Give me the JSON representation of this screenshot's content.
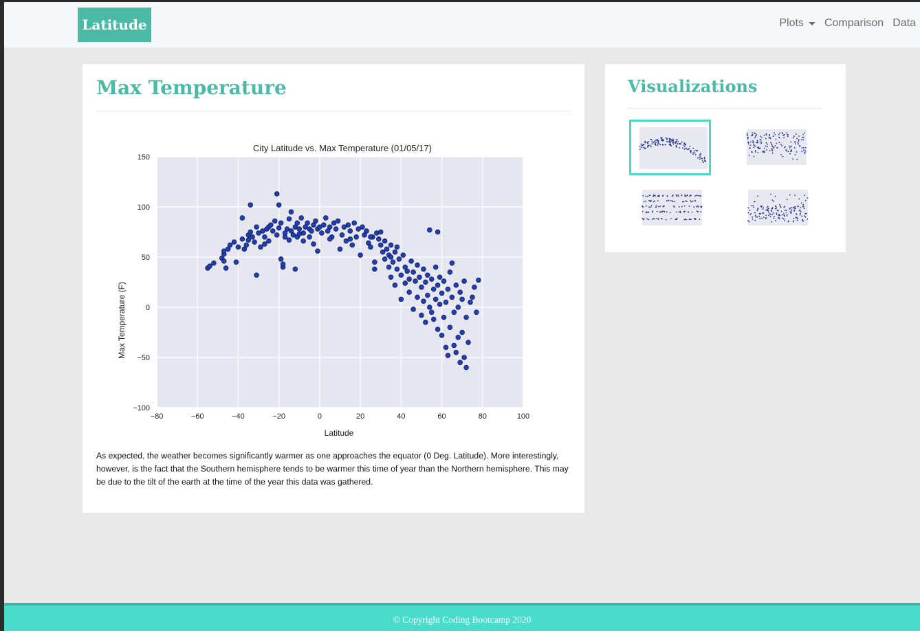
{
  "navbar": {
    "brand": "Latitude",
    "links": [
      {
        "label": "Plots",
        "dropdown": true
      },
      {
        "label": "Comparison"
      },
      {
        "label": "Data"
      }
    ]
  },
  "main": {
    "title": "Max Temperature",
    "description": "As expected, the weather becomes significantly warmer as one approaches the equator (0 Deg. Latitude). More interestingly, however, is the fact that the Southern hemisphere tends to be warmer this time of year than the Northern hemisphere. This may be due to the tilt of the earth at the time of the year this data was gathered."
  },
  "sidebar": {
    "title": "Visualizations",
    "thumbnails": [
      {
        "name": "max-temperature",
        "selected": true
      },
      {
        "name": "humidity",
        "selected": false
      },
      {
        "name": "cloudiness",
        "selected": false
      },
      {
        "name": "wind-speed",
        "selected": false
      }
    ]
  },
  "footer": {
    "text": "© Copyright Coding Bootcamp 2020"
  },
  "colors": {
    "accent": "#4ab9a6",
    "footer": "#4adccb",
    "marker": "#1f3fb5",
    "plot_bg": "#e5e6f0"
  },
  "chart_data": {
    "type": "scatter",
    "title": "City Latitude vs. Max Temperature (01/05/17)",
    "xlabel": "Latitude",
    "ylabel": "Max Temperature (F)",
    "xlim": [
      -80,
      100
    ],
    "ylim": [
      -100,
      150
    ],
    "xticks": [
      -80,
      -60,
      -40,
      -20,
      0,
      20,
      40,
      60,
      80,
      100
    ],
    "yticks": [
      -100,
      -50,
      0,
      50,
      100,
      150
    ],
    "grid": true,
    "points": [
      [
        -55,
        39
      ],
      [
        -54,
        41
      ],
      [
        -52,
        44
      ],
      [
        -48,
        49
      ],
      [
        -47,
        53
      ],
      [
        -47,
        56
      ],
      [
        -47,
        46
      ],
      [
        -46,
        39
      ],
      [
        -45,
        58
      ],
      [
        -44,
        62
      ],
      [
        -42,
        65
      ],
      [
        -41,
        45
      ],
      [
        -40,
        60
      ],
      [
        -38,
        68
      ],
      [
        -38,
        89
      ],
      [
        -37,
        58
      ],
      [
        -36,
        62
      ],
      [
        -35,
        72
      ],
      [
        -35,
        67
      ],
      [
        -34,
        102
      ],
      [
        -34,
        75
      ],
      [
        -33,
        70
      ],
      [
        -32,
        65
      ],
      [
        -31,
        80
      ],
      [
        -31,
        32
      ],
      [
        -30,
        74
      ],
      [
        -29,
        60
      ],
      [
        -28,
        76
      ],
      [
        -27,
        70
      ],
      [
        -27,
        63
      ],
      [
        -26,
        78
      ],
      [
        -25,
        66
      ],
      [
        -25,
        80
      ],
      [
        -24,
        82
      ],
      [
        -23,
        76
      ],
      [
        -22,
        86
      ],
      [
        -21,
        113
      ],
      [
        -21,
        72
      ],
      [
        -20,
        102
      ],
      [
        -20,
        79
      ],
      [
        -19,
        84
      ],
      [
        -19,
        48
      ],
      [
        -18,
        40
      ],
      [
        -18,
        43
      ],
      [
        -17,
        74
      ],
      [
        -17,
        70
      ],
      [
        -16,
        78
      ],
      [
        -15,
        88
      ],
      [
        -15,
        67
      ],
      [
        -14,
        95
      ],
      [
        -14,
        76
      ],
      [
        -13,
        72
      ],
      [
        -12,
        80
      ],
      [
        -12,
        38
      ],
      [
        -11,
        70
      ],
      [
        -11,
        84
      ],
      [
        -10,
        78
      ],
      [
        -9,
        89
      ],
      [
        -8,
        74
      ],
      [
        -8,
        66
      ],
      [
        -7,
        80
      ],
      [
        -6,
        84
      ],
      [
        -5,
        70
      ],
      [
        -5,
        78
      ],
      [
        -4,
        76
      ],
      [
        -3,
        82
      ],
      [
        -3,
        63
      ],
      [
        -2,
        86
      ],
      [
        -1,
        78
      ],
      [
        -1,
        56
      ],
      [
        0,
        80
      ],
      [
        1,
        74
      ],
      [
        2,
        82
      ],
      [
        3,
        89
      ],
      [
        4,
        76
      ],
      [
        5,
        80
      ],
      [
        6,
        70
      ],
      [
        7,
        84
      ],
      [
        8,
        78
      ],
      [
        9,
        86
      ],
      [
        10,
        58
      ],
      [
        11,
        72
      ],
      [
        12,
        80
      ],
      [
        13,
        66
      ],
      [
        14,
        82
      ],
      [
        15,
        76
      ],
      [
        16,
        62
      ],
      [
        17,
        84
      ],
      [
        18,
        70
      ],
      [
        19,
        78
      ],
      [
        20,
        52
      ],
      [
        21,
        80
      ],
      [
        22,
        72
      ],
      [
        23,
        76
      ],
      [
        24,
        64
      ],
      [
        25,
        60
      ],
      [
        26,
        70
      ],
      [
        27,
        45
      ],
      [
        27,
        38
      ],
      [
        28,
        74
      ],
      [
        29,
        68
      ],
      [
        30,
        62
      ],
      [
        31,
        55
      ],
      [
        32,
        48
      ],
      [
        32,
        66
      ],
      [
        33,
        58
      ],
      [
        34,
        52
      ],
      [
        34,
        40
      ],
      [
        35,
        30
      ],
      [
        35,
        62
      ],
      [
        36,
        45
      ],
      [
        37,
        55
      ],
      [
        37,
        22
      ],
      [
        38,
        38
      ],
      [
        38,
        60
      ],
      [
        39,
        48
      ],
      [
        40,
        32
      ],
      [
        40,
        8
      ],
      [
        41,
        52
      ],
      [
        42,
        40
      ],
      [
        42,
        24
      ],
      [
        43,
        36
      ],
      [
        44,
        15
      ],
      [
        44,
        28
      ],
      [
        45,
        46
      ],
      [
        46,
        35
      ],
      [
        46,
        -2
      ],
      [
        47,
        26
      ],
      [
        48,
        42
      ],
      [
        48,
        10
      ],
      [
        49,
        30
      ],
      [
        50,
        20
      ],
      [
        50,
        -8
      ],
      [
        51,
        38
      ],
      [
        51,
        6
      ],
      [
        52,
        25
      ],
      [
        52,
        -15
      ],
      [
        53,
        12
      ],
      [
        53,
        32
      ],
      [
        54,
        0
      ],
      [
        54,
        77
      ],
      [
        55,
        28
      ],
      [
        55,
        -5
      ],
      [
        56,
        18
      ],
      [
        56,
        -12
      ],
      [
        57,
        40
      ],
      [
        57,
        8
      ],
      [
        58,
        75
      ],
      [
        58,
        22
      ],
      [
        58,
        -22
      ],
      [
        59,
        3
      ],
      [
        59,
        30
      ],
      [
        60,
        -28
      ],
      [
        60,
        14
      ],
      [
        61,
        -10
      ],
      [
        61,
        26
      ],
      [
        62,
        -40
      ],
      [
        62,
        5
      ],
      [
        63,
        18
      ],
      [
        63,
        -48
      ],
      [
        64,
        35
      ],
      [
        64,
        -20
      ],
      [
        65,
        10
      ],
      [
        65,
        44
      ],
      [
        66,
        -5
      ],
      [
        66,
        -38
      ],
      [
        67,
        22
      ],
      [
        67,
        -45
      ],
      [
        68,
        -30
      ],
      [
        68,
        0
      ],
      [
        69,
        15
      ],
      [
        69,
        -55
      ],
      [
        70,
        -25
      ],
      [
        70,
        8
      ],
      [
        71,
        -50
      ],
      [
        71,
        26
      ],
      [
        72,
        -60
      ],
      [
        72,
        -10
      ],
      [
        73,
        -35
      ],
      [
        74,
        5
      ],
      [
        75,
        10
      ],
      [
        76,
        20
      ],
      [
        77,
        -5
      ],
      [
        78,
        27
      ],
      [
        30,
        75
      ],
      [
        25,
        70
      ],
      [
        -10,
        73
      ],
      [
        5,
        68
      ],
      [
        15,
        68
      ],
      [
        35,
        50
      ]
    ]
  }
}
